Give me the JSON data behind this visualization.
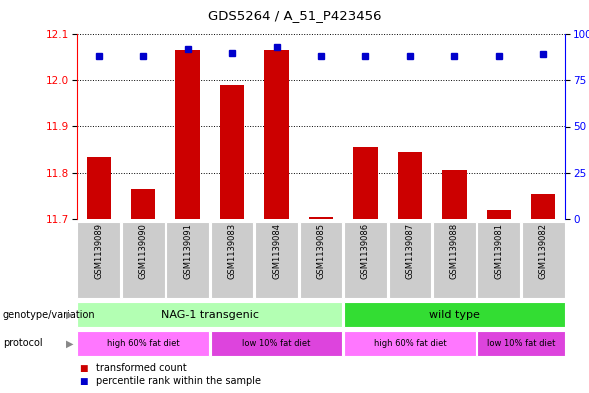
{
  "title": "GDS5264 / A_51_P423456",
  "samples": [
    "GSM1139089",
    "GSM1139090",
    "GSM1139091",
    "GSM1139083",
    "GSM1139084",
    "GSM1139085",
    "GSM1139086",
    "GSM1139087",
    "GSM1139088",
    "GSM1139081",
    "GSM1139082"
  ],
  "bar_values": [
    11.835,
    11.765,
    12.065,
    11.99,
    12.065,
    11.705,
    11.855,
    11.845,
    11.805,
    11.72,
    11.755
  ],
  "percentile_values": [
    88,
    88,
    92,
    90,
    93,
    88,
    88,
    88,
    88,
    88,
    89
  ],
  "ylim_left": [
    11.7,
    12.1
  ],
  "ylim_right": [
    0,
    100
  ],
  "yticks_left": [
    11.7,
    11.8,
    11.9,
    12.0,
    12.1
  ],
  "yticks_right": [
    0,
    25,
    50,
    75,
    100
  ],
  "bar_color": "#cc0000",
  "dot_color": "#0000cc",
  "bar_width": 0.55,
  "genotype_groups": [
    {
      "label": "NAG-1 transgenic",
      "start": 0,
      "end": 5,
      "color": "#b3ffb3"
    },
    {
      "label": "wild type",
      "start": 6,
      "end": 10,
      "color": "#33dd33"
    }
  ],
  "protocol_groups": [
    {
      "label": "high 60% fat diet",
      "start": 0,
      "end": 2,
      "color": "#ff77ff"
    },
    {
      "label": "low 10% fat diet",
      "start": 3,
      "end": 5,
      "color": "#dd44dd"
    },
    {
      "label": "high 60% fat diet",
      "start": 6,
      "end": 8,
      "color": "#ff77ff"
    },
    {
      "label": "low 10% fat diet",
      "start": 9,
      "end": 10,
      "color": "#dd44dd"
    }
  ],
  "legend_items": [
    {
      "label": "transformed count",
      "color": "#cc0000"
    },
    {
      "label": "percentile rank within the sample",
      "color": "#0000cc"
    }
  ],
  "fig_width": 5.89,
  "fig_height": 3.93,
  "dpi": 100
}
